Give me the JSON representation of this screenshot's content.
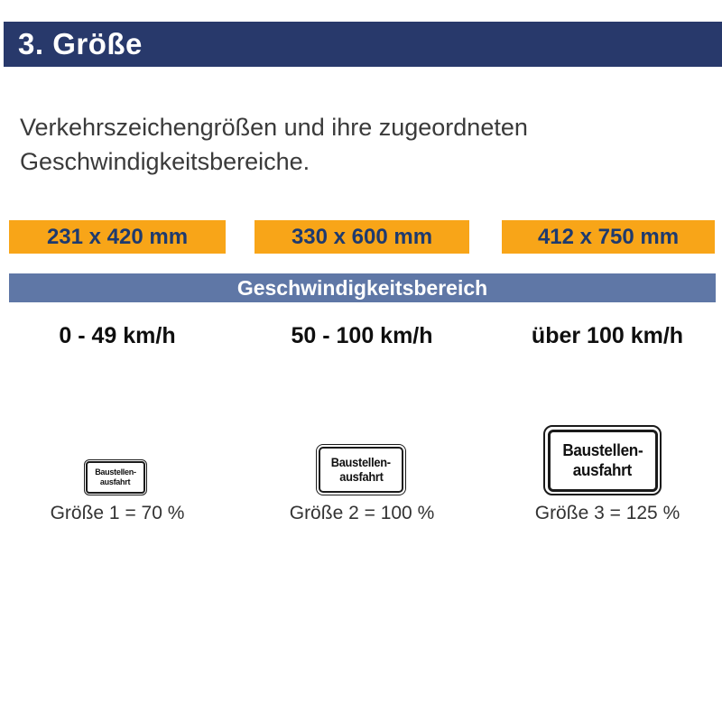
{
  "header": {
    "title": "3. Größe"
  },
  "intro": {
    "text": "Verkehrszeichengrößen und ihre zugeordneten Geschwindigkeitsbereiche."
  },
  "size_bars": [
    {
      "label": "231 x 420 mm"
    },
    {
      "label": "330 x 600 mm"
    },
    {
      "label": "412 x 750 mm"
    }
  ],
  "speed_band": {
    "title": "Geschwindigkeitsbereich"
  },
  "speed_ranges": [
    {
      "label": "0 - 49 km/h"
    },
    {
      "label": "50 - 100 km/h"
    },
    {
      "label": "über 100 km/h"
    }
  ],
  "signs": [
    {
      "line1": "Baustellen-",
      "line2": "ausfahrt",
      "caption": "Größe 1 = 70 %"
    },
    {
      "line1": "Baustellen-",
      "line2": "ausfahrt",
      "caption": "Größe 2 = 100 %"
    },
    {
      "line1": "Baustellen-",
      "line2": "ausfahrt",
      "caption": "Größe 3 = 125 %"
    }
  ],
  "colors": {
    "navy": "#28396B",
    "orange": "#F8A518",
    "slate": "#5F77A6",
    "bar_label_navy": "#1E3A6E",
    "sign_black": "#1A1A1A"
  }
}
